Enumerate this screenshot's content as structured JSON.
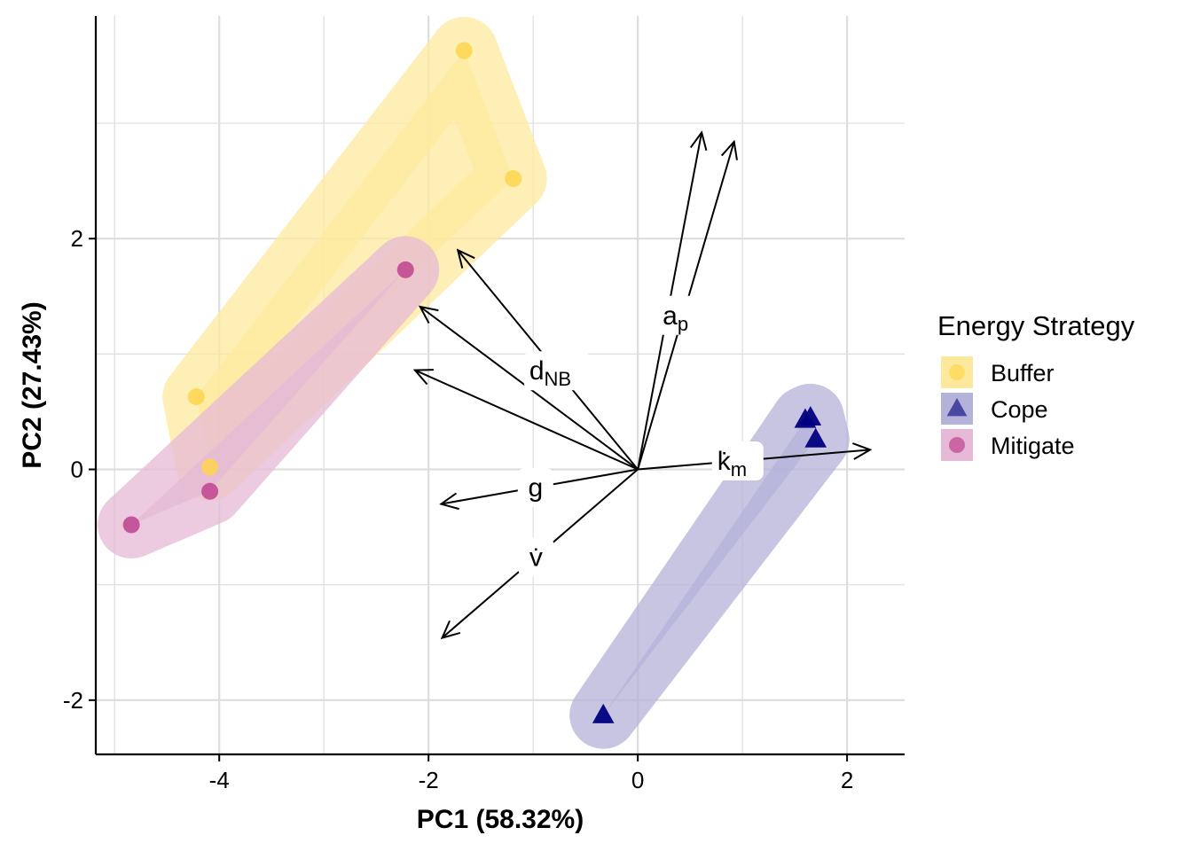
{
  "chart_data": {
    "type": "scatter",
    "title": "",
    "xlabel": "PC1 (58.32%)",
    "ylabel": "PC2 (27.43%)",
    "xlim": [
      -5.18,
      2.55
    ],
    "ylim": [
      -2.47,
      3.93
    ],
    "x_ticks": [
      -4,
      -2,
      0,
      2
    ],
    "x_tick_labels": [
      "-4",
      "-2",
      "0",
      "2"
    ],
    "y_ticks": [
      -2,
      0,
      2
    ],
    "y_tick_labels": [
      "-2",
      "0",
      "2"
    ],
    "grid": true,
    "legend": {
      "title": "Energy Strategy",
      "placement": "right"
    },
    "series": [
      {
        "name": "Buffer",
        "color": "#FDD54E",
        "hull_color": "#FDE99E",
        "marker": "circle",
        "points": [
          {
            "x": -1.66,
            "y": 3.63
          },
          {
            "x": -1.19,
            "y": 2.52
          },
          {
            "x": -4.22,
            "y": 0.63
          },
          {
            "x": -4.09,
            "y": 0.02
          }
        ]
      },
      {
        "name": "Cope",
        "color": "#000080",
        "hull_color": "#B4B2D8",
        "marker": "triangle",
        "points": [
          {
            "x": 1.65,
            "y": 0.45
          },
          {
            "x": 1.7,
            "y": 0.26
          },
          {
            "x": 1.6,
            "y": 0.43
          },
          {
            "x": -0.33,
            "y": -2.13
          }
        ]
      },
      {
        "name": "Mitigate",
        "color": "#C0428F",
        "hull_color": "#E6BAD6",
        "marker": "circle",
        "points": [
          {
            "x": -2.22,
            "y": 1.73
          },
          {
            "x": -4.09,
            "y": -0.19
          },
          {
            "x": -4.84,
            "y": -0.48
          }
        ]
      }
    ],
    "loadings": [
      {
        "name": "a_p_1",
        "label": "",
        "sub": "",
        "x": 0.61,
        "y": 2.92
      },
      {
        "name": "a_p_2",
        "label": "a",
        "sub": "p",
        "x": 0.92,
        "y": 2.84
      },
      {
        "name": "k_m",
        "label": "k̇",
        "sub": "m",
        "x": 2.22,
        "y": 0.17
      },
      {
        "name": "d_NB",
        "label": "d",
        "sub": "NB",
        "x": -1.72,
        "y": 1.9
      },
      {
        "name": "upper",
        "label": "",
        "sub": "",
        "x": -2.08,
        "y": 1.41
      },
      {
        "name": "sub",
        "label": "",
        "sub": "",
        "x": -2.13,
        "y": 0.86
      },
      {
        "name": "g",
        "label": "g",
        "sub": "",
        "x": -1.88,
        "y": -0.3
      },
      {
        "name": "v",
        "label": "v̇",
        "sub": "",
        "x": -1.87,
        "y": -1.46
      }
    ]
  }
}
